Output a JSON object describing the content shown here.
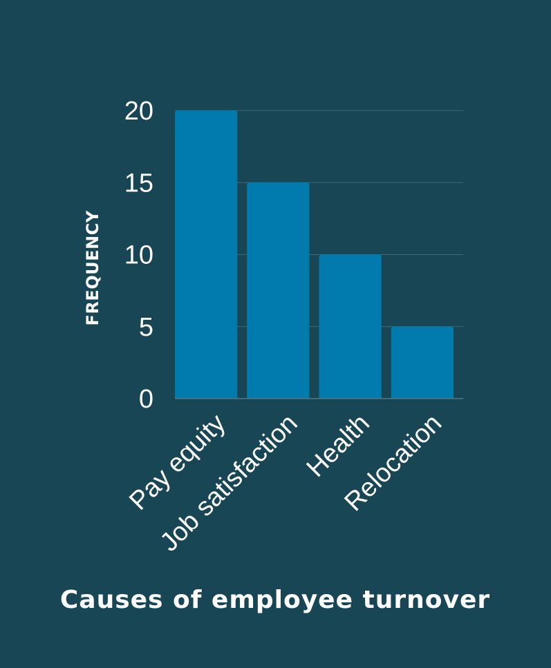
{
  "chart_data": {
    "type": "bar",
    "categories": [
      "Pay equity",
      "Job satisfaction",
      "Health",
      "Relocation"
    ],
    "values": [
      20,
      15,
      10,
      5
    ],
    "title": "",
    "xlabel": "Causes of employee turnover",
    "ylabel": "FREQUENCY",
    "ylim": [
      0,
      20
    ],
    "yticks": [
      0,
      5,
      10,
      15,
      20
    ],
    "grid": true,
    "legend": "none"
  },
  "colors": {
    "background": "#184655",
    "bar": "#017aae",
    "text": "#ffffff",
    "grid": "#3c6b79"
  }
}
